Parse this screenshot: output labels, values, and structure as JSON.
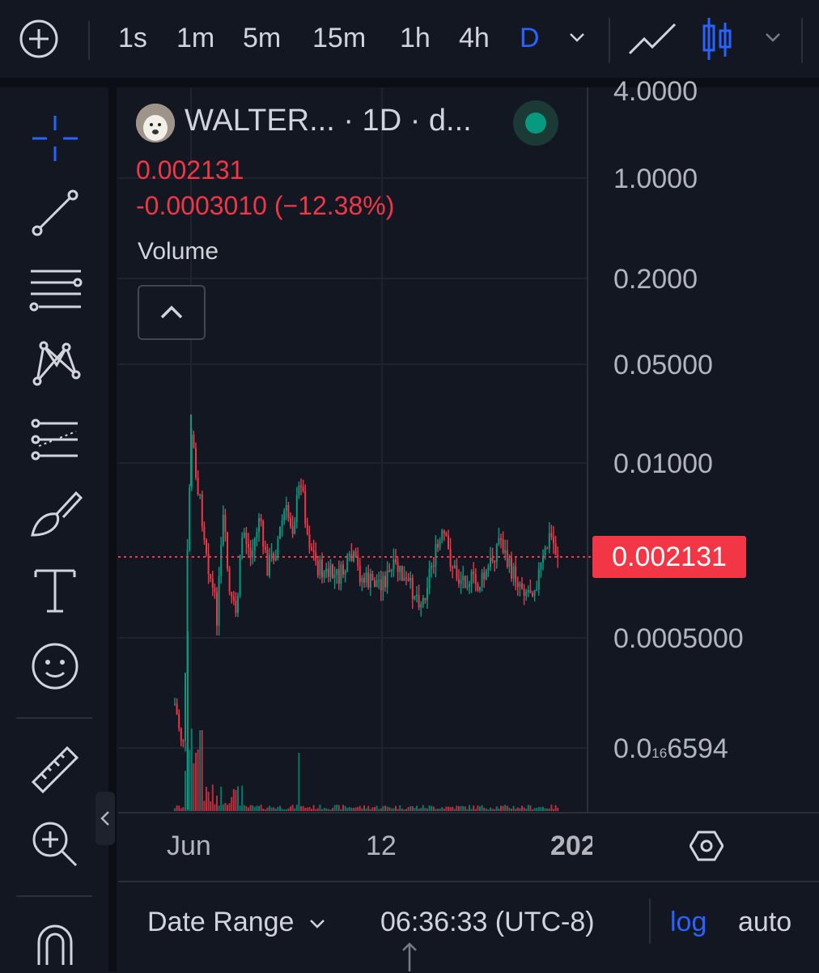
{
  "topbar": {
    "timeframes": [
      "1s",
      "1m",
      "5m",
      "15m",
      "1h",
      "4h"
    ],
    "active_timeframe": "D"
  },
  "legend": {
    "title": "WALTER... · 1D · d...",
    "last_price": "0.002131",
    "change": "-0.0003010 (−12.38%)",
    "volume_label": "Volume"
  },
  "price_axis": {
    "ticks": [
      "4.0000",
      "1.0000",
      "0.2000",
      "0.05000",
      "0.01000",
      "0.0005000"
    ],
    "subscript_tick": {
      "prefix": "0.0",
      "subscript": "16",
      "suffix": "6594"
    },
    "current_price": "0.002131"
  },
  "time_axis": {
    "ticks": [
      "Jun",
      "12",
      "202"
    ]
  },
  "bottom_bar": {
    "date_range": "Date Range",
    "clock": "06:36:33 (UTC-8)",
    "log_label": "log",
    "auto_label": "auto"
  },
  "colors": {
    "background": "#131722",
    "up": "#089981",
    "down": "#f23645",
    "accent": "#2962ff"
  },
  "icons": {
    "add": "plus-circle-icon",
    "timeframe_dropdown": "chevron-down-icon",
    "line_chart": "line-chart-icon",
    "candles": "candlestick-icon",
    "chart_type_dropdown": "chevron-down-icon",
    "tools": [
      "crosshair-icon",
      "trend-line-icon",
      "horizontal-lines-icon",
      "pattern-icon",
      "projection-icon",
      "brush-icon",
      "text-icon",
      "emoji-icon",
      "ruler-icon",
      "zoom-in-icon",
      "magnet-icon"
    ],
    "settings": "settings-hexagon-icon"
  }
}
